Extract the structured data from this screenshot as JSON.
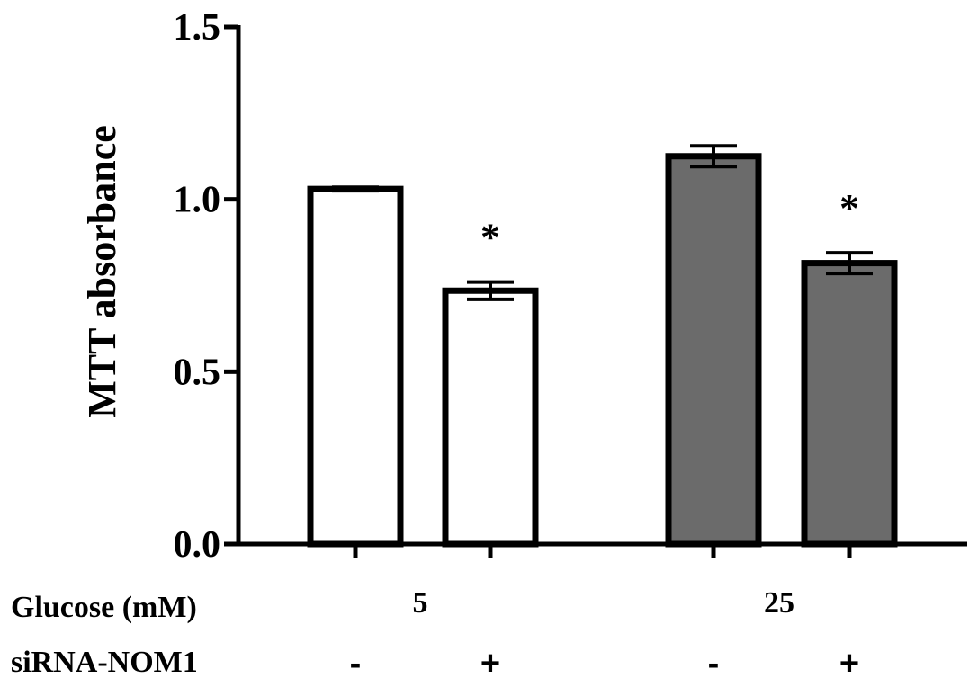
{
  "chart_data": {
    "type": "bar",
    "ylabel": "MTT absorbance",
    "ylim": [
      0,
      1.5
    ],
    "yticks": [
      0.0,
      0.5,
      1.0,
      1.5
    ],
    "ytick_labels": [
      "0.0",
      "0.5",
      "1.0",
      "1.5"
    ],
    "bars": [
      {
        "glucose": "5",
        "sirna": "-",
        "value": 1.03,
        "error": 0.005,
        "fill": "#ffffff",
        "significance": ""
      },
      {
        "glucose": "5",
        "sirna": "+",
        "value": 0.735,
        "error": 0.025,
        "fill": "#ffffff",
        "significance": "*"
      },
      {
        "glucose": "25",
        "sirna": "-",
        "value": 1.125,
        "error": 0.03,
        "fill": "#6b6b6b",
        "significance": ""
      },
      {
        "glucose": "25",
        "sirna": "+",
        "value": 0.815,
        "error": 0.03,
        "fill": "#6b6b6b",
        "significance": "*"
      }
    ],
    "row_labels": {
      "glucose": "Glucose (mM)",
      "sirna": "siRNA-NOM1"
    },
    "group_labels": [
      "5",
      "25"
    ],
    "sirna_labels": [
      "-",
      "+",
      "-",
      "+"
    ]
  }
}
